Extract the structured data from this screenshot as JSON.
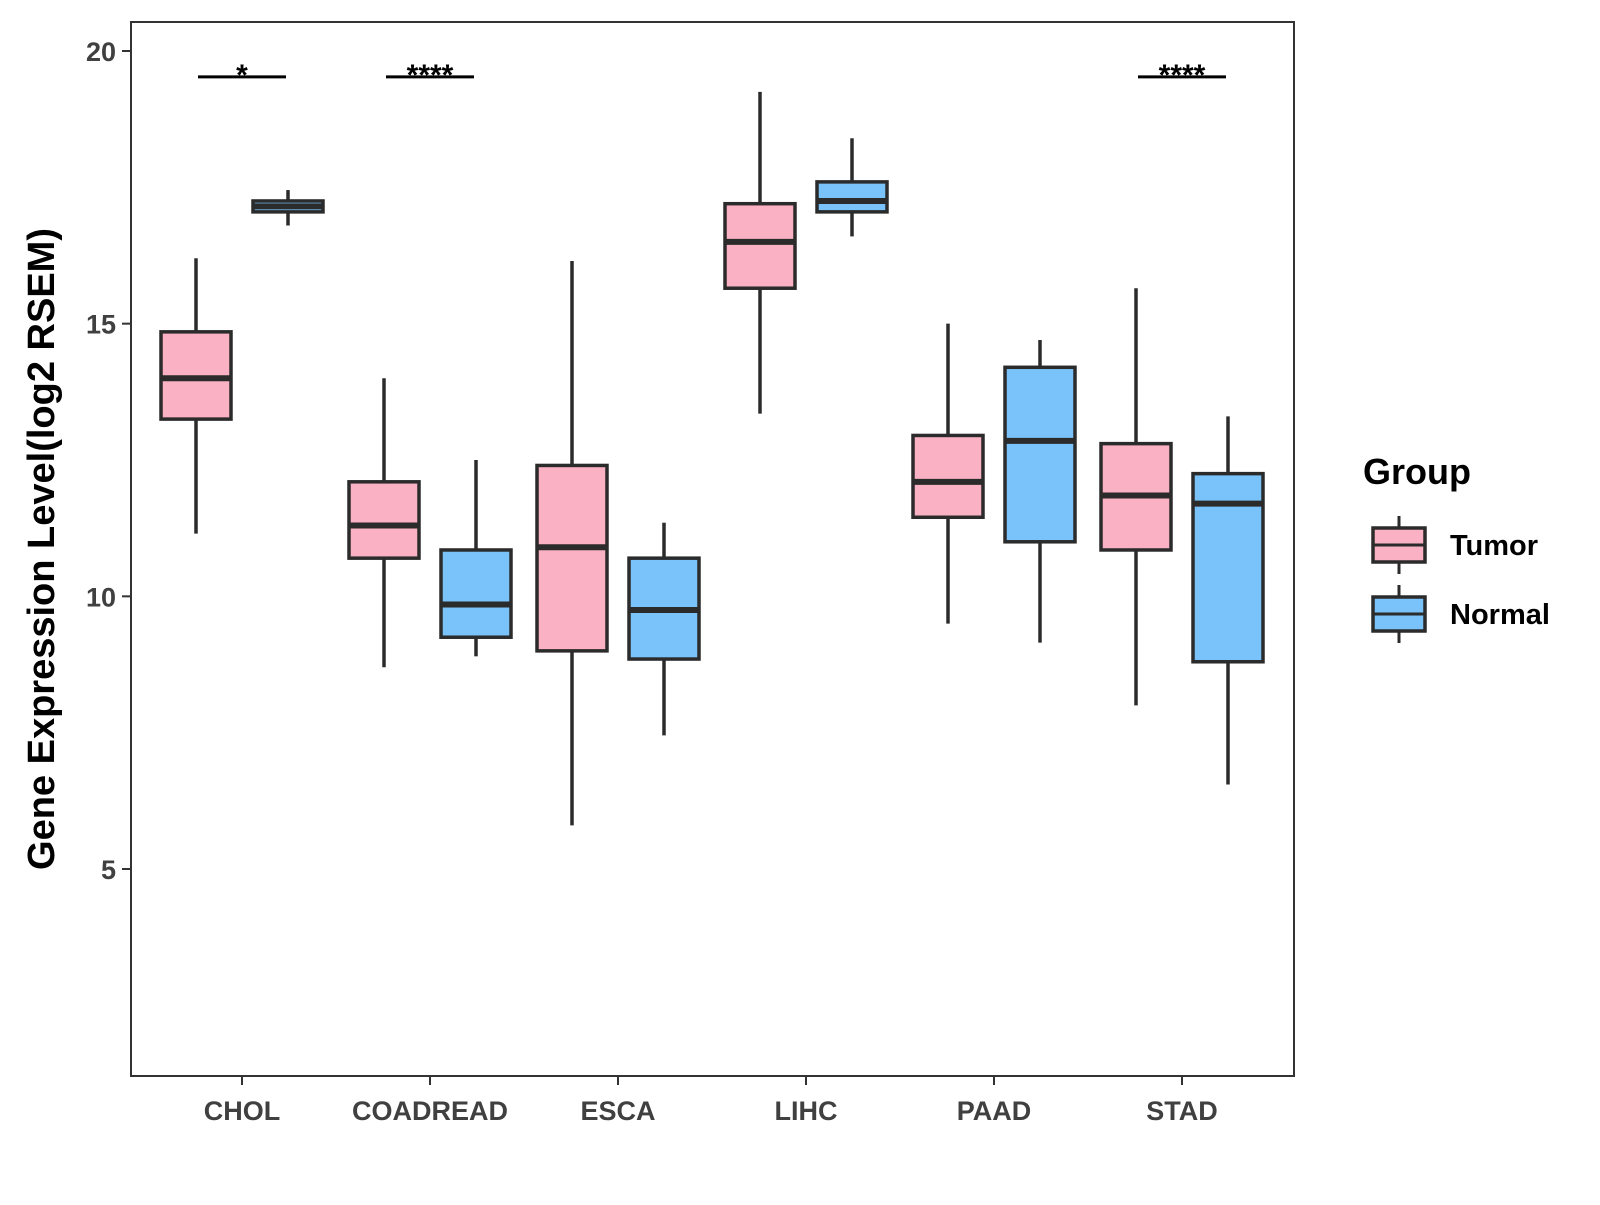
{
  "chart_data": {
    "type": "boxplot",
    "title": "",
    "xlabel": "",
    "ylabel": "Gene Expression Level(log2 RSEM)",
    "ylim": [
      1.5,
      20.5
    ],
    "yticks": [
      5,
      10,
      15,
      20
    ],
    "grid": false,
    "legend": {
      "title": "Group",
      "position": "right",
      "entries": [
        {
          "name": "Tumor",
          "color": "#FBB1C4"
        },
        {
          "name": "Normal",
          "color": "#79C2FA"
        }
      ]
    },
    "categories": [
      "CHOL",
      "COADREAD",
      "ESCA",
      "LIHC",
      "PAAD",
      "STAD"
    ],
    "series": [
      {
        "name": "Tumor",
        "color": "#FBB1C4",
        "boxes": [
          {
            "min": 11.15,
            "q1": 13.25,
            "median": 14.0,
            "q3": 14.85,
            "max": 16.2
          },
          {
            "min": 8.7,
            "q1": 10.7,
            "median": 11.3,
            "q3": 12.1,
            "max": 14.0
          },
          {
            "min": 5.8,
            "q1": 9.0,
            "median": 10.9,
            "q3": 12.4,
            "max": 16.15
          },
          {
            "min": 13.35,
            "q1": 15.65,
            "median": 16.5,
            "q3": 17.2,
            "max": 19.25
          },
          {
            "min": 9.5,
            "q1": 11.45,
            "median": 12.1,
            "q3": 12.95,
            "max": 15.0
          },
          {
            "min": 8.0,
            "q1": 10.85,
            "median": 11.85,
            "q3": 12.8,
            "max": 15.65
          }
        ]
      },
      {
        "name": "Normal",
        "color": "#79C2FA",
        "boxes": [
          {
            "min": 16.8,
            "q1": 17.05,
            "median": 17.15,
            "q3": 17.25,
            "max": 17.45
          },
          {
            "min": 8.9,
            "q1": 9.25,
            "median": 9.85,
            "q3": 10.85,
            "max": 12.5
          },
          {
            "min": 7.45,
            "q1": 8.85,
            "median": 9.75,
            "q3": 10.7,
            "max": 11.35
          },
          {
            "min": 16.6,
            "q1": 17.05,
            "median": 17.25,
            "q3": 17.6,
            "max": 18.4
          },
          {
            "min": 9.15,
            "q1": 11.0,
            "median": 12.85,
            "q3": 14.2,
            "max": 14.7
          },
          {
            "min": 6.55,
            "q1": 8.8,
            "median": 11.7,
            "q3": 12.25,
            "max": 13.3
          }
        ]
      }
    ],
    "significance": [
      {
        "category": "CHOL",
        "label": "*",
        "y": 19.6
      },
      {
        "category": "COADREAD",
        "label": "****",
        "y": 19.6
      },
      {
        "category": "STAD",
        "label": "****",
        "y": 19.6
      }
    ]
  }
}
